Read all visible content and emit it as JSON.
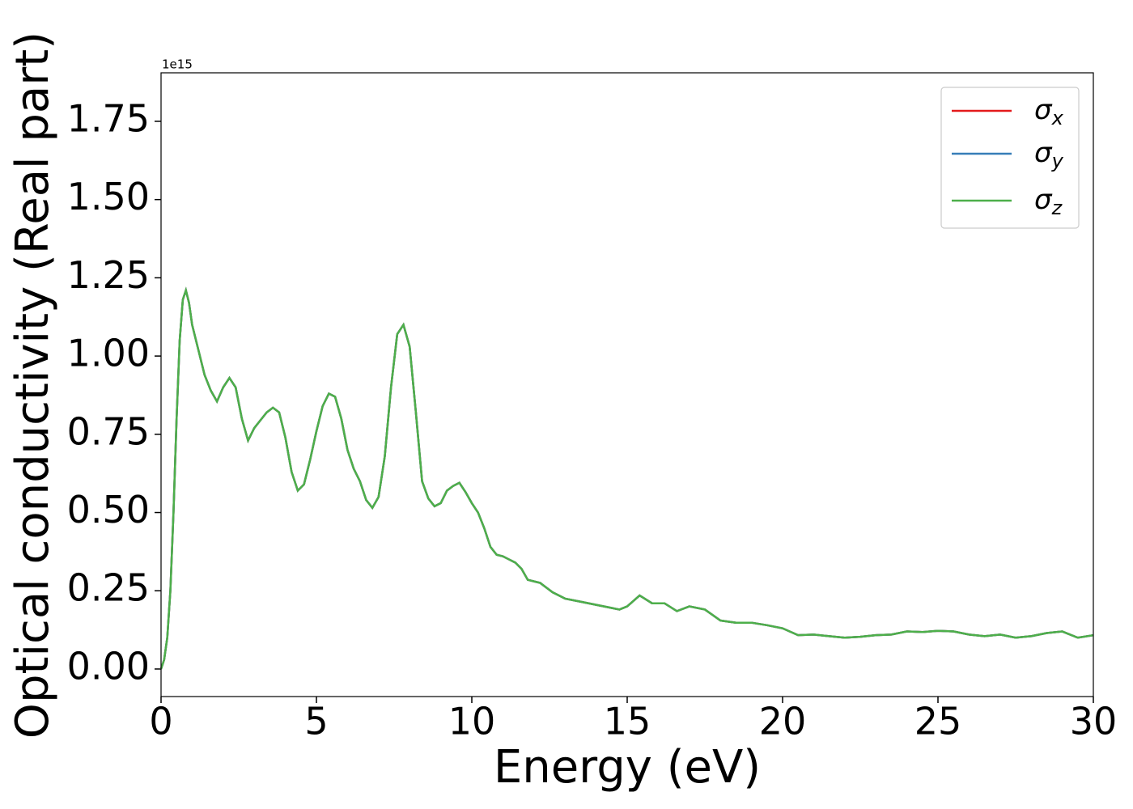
{
  "chart_data": {
    "type": "line",
    "x_label": "Energy (eV)",
    "y_label": "Optical conductivity (Real part)",
    "y_offset_label": "1e15",
    "x": [
      0,
      0.1,
      0.2,
      0.3,
      0.4,
      0.5,
      0.6,
      0.7,
      0.8,
      0.9,
      1.0,
      1.2,
      1.4,
      1.6,
      1.8,
      2.0,
      2.2,
      2.4,
      2.6,
      2.8,
      3.0,
      3.2,
      3.4,
      3.6,
      3.8,
      4.0,
      4.2,
      4.4,
      4.6,
      4.8,
      5.0,
      5.2,
      5.4,
      5.6,
      5.8,
      6.0,
      6.2,
      6.4,
      6.6,
      6.8,
      7.0,
      7.2,
      7.4,
      7.6,
      7.8,
      8.0,
      8.2,
      8.4,
      8.6,
      8.8,
      9.0,
      9.2,
      9.4,
      9.6,
      9.8,
      10.0,
      10.2,
      10.4,
      10.6,
      10.8,
      11.0,
      11.2,
      11.4,
      11.6,
      11.8,
      12.0,
      12.2,
      12.4,
      12.6,
      12.8,
      13.0,
      13.5,
      14.0,
      14.5,
      14.75,
      15.0,
      15.4,
      15.8,
      16.2,
      16.6,
      17.0,
      17.5,
      18.0,
      18.5,
      19.0,
      19.5,
      20.0,
      20.5,
      21.0,
      21.5,
      22.0,
      22.5,
      23.0,
      23.5,
      24.0,
      24.5,
      25.0,
      25.5,
      26.0,
      26.5,
      27.0,
      27.5,
      28.0,
      28.5,
      29.0,
      29.5,
      30.0
    ],
    "series": [
      {
        "name": "σx",
        "color": "#e41a1c",
        "values": [
          0,
          0.03,
          0.1,
          0.25,
          0.5,
          0.8,
          1.05,
          1.18,
          1.21,
          1.17,
          1.1,
          1.02,
          0.94,
          0.89,
          0.855,
          0.9,
          0.93,
          0.9,
          0.8,
          0.73,
          0.77,
          0.795,
          0.82,
          0.835,
          0.82,
          0.74,
          0.63,
          0.57,
          0.59,
          0.67,
          0.76,
          0.84,
          0.88,
          0.87,
          0.8,
          0.7,
          0.64,
          0.6,
          0.54,
          0.515,
          0.55,
          0.68,
          0.9,
          1.07,
          1.1,
          1.03,
          0.82,
          0.6,
          0.545,
          0.52,
          0.53,
          0.57,
          0.585,
          0.595,
          0.565,
          0.53,
          0.5,
          0.45,
          0.39,
          0.365,
          0.36,
          0.35,
          0.34,
          0.32,
          0.285,
          0.28,
          0.275,
          0.26,
          0.245,
          0.235,
          0.225,
          0.215,
          0.205,
          0.195,
          0.19,
          0.2,
          0.235,
          0.21,
          0.21,
          0.185,
          0.2,
          0.19,
          0.155,
          0.148,
          0.148,
          0.14,
          0.13,
          0.108,
          0.11,
          0.105,
          0.1,
          0.103,
          0.108,
          0.11,
          0.12,
          0.118,
          0.122,
          0.12,
          0.11,
          0.105,
          0.11,
          0.1,
          0.105,
          0.115,
          0.12,
          0.1,
          0.108
        ]
      },
      {
        "name": "σy",
        "color": "#377eb8",
        "values": [
          0,
          0.03,
          0.1,
          0.25,
          0.5,
          0.8,
          1.05,
          1.18,
          1.21,
          1.17,
          1.1,
          1.02,
          0.94,
          0.89,
          0.855,
          0.9,
          0.93,
          0.9,
          0.8,
          0.73,
          0.77,
          0.795,
          0.82,
          0.835,
          0.82,
          0.74,
          0.63,
          0.57,
          0.59,
          0.67,
          0.76,
          0.84,
          0.88,
          0.87,
          0.8,
          0.7,
          0.64,
          0.6,
          0.54,
          0.515,
          0.55,
          0.68,
          0.9,
          1.07,
          1.1,
          1.03,
          0.82,
          0.6,
          0.545,
          0.52,
          0.53,
          0.57,
          0.585,
          0.595,
          0.565,
          0.53,
          0.5,
          0.45,
          0.39,
          0.365,
          0.36,
          0.35,
          0.34,
          0.32,
          0.285,
          0.28,
          0.275,
          0.26,
          0.245,
          0.235,
          0.225,
          0.215,
          0.205,
          0.195,
          0.19,
          0.2,
          0.235,
          0.21,
          0.21,
          0.185,
          0.2,
          0.19,
          0.155,
          0.148,
          0.148,
          0.14,
          0.13,
          0.108,
          0.11,
          0.105,
          0.1,
          0.103,
          0.108,
          0.11,
          0.12,
          0.118,
          0.122,
          0.12,
          0.11,
          0.105,
          0.11,
          0.1,
          0.105,
          0.115,
          0.12,
          0.1,
          0.108
        ]
      },
      {
        "name": "σz",
        "color": "#4daf4a",
        "values": [
          0,
          0.03,
          0.1,
          0.25,
          0.5,
          0.8,
          1.05,
          1.18,
          1.21,
          1.17,
          1.1,
          1.02,
          0.94,
          0.89,
          0.855,
          0.9,
          0.93,
          0.9,
          0.8,
          0.73,
          0.77,
          0.795,
          0.82,
          0.835,
          0.82,
          0.74,
          0.63,
          0.57,
          0.59,
          0.67,
          0.76,
          0.84,
          0.88,
          0.87,
          0.8,
          0.7,
          0.64,
          0.6,
          0.54,
          0.515,
          0.55,
          0.68,
          0.9,
          1.07,
          1.1,
          1.03,
          0.82,
          0.6,
          0.545,
          0.52,
          0.53,
          0.57,
          0.585,
          0.595,
          0.565,
          0.53,
          0.5,
          0.45,
          0.39,
          0.365,
          0.36,
          0.35,
          0.34,
          0.32,
          0.285,
          0.28,
          0.275,
          0.26,
          0.245,
          0.235,
          0.225,
          0.215,
          0.205,
          0.195,
          0.19,
          0.2,
          0.235,
          0.21,
          0.21,
          0.185,
          0.2,
          0.19,
          0.155,
          0.148,
          0.148,
          0.14,
          0.13,
          0.108,
          0.11,
          0.105,
          0.1,
          0.103,
          0.108,
          0.11,
          0.12,
          0.118,
          0.122,
          0.12,
          0.11,
          0.105,
          0.11,
          0.1,
          0.105,
          0.115,
          0.12,
          0.1,
          0.108
        ]
      }
    ],
    "xlim": [
      0,
      30
    ],
    "xticks": [
      0,
      5,
      10,
      15,
      20,
      25,
      30
    ],
    "ylim": [
      -0.088,
      1.905
    ],
    "yticks": [
      {
        "value": 0,
        "label": "0.00"
      },
      {
        "value": 0.25,
        "label": "0.25"
      },
      {
        "value": 0.5,
        "label": "0.50"
      },
      {
        "value": 0.75,
        "label": "0.75"
      },
      {
        "value": 1,
        "label": "1.00"
      },
      {
        "value": 1.25,
        "label": "1.25"
      },
      {
        "value": 1.5,
        "label": "1.50"
      },
      {
        "value": 1.75,
        "label": "1.75"
      }
    ],
    "legend": "upper right",
    "grid": false
  }
}
